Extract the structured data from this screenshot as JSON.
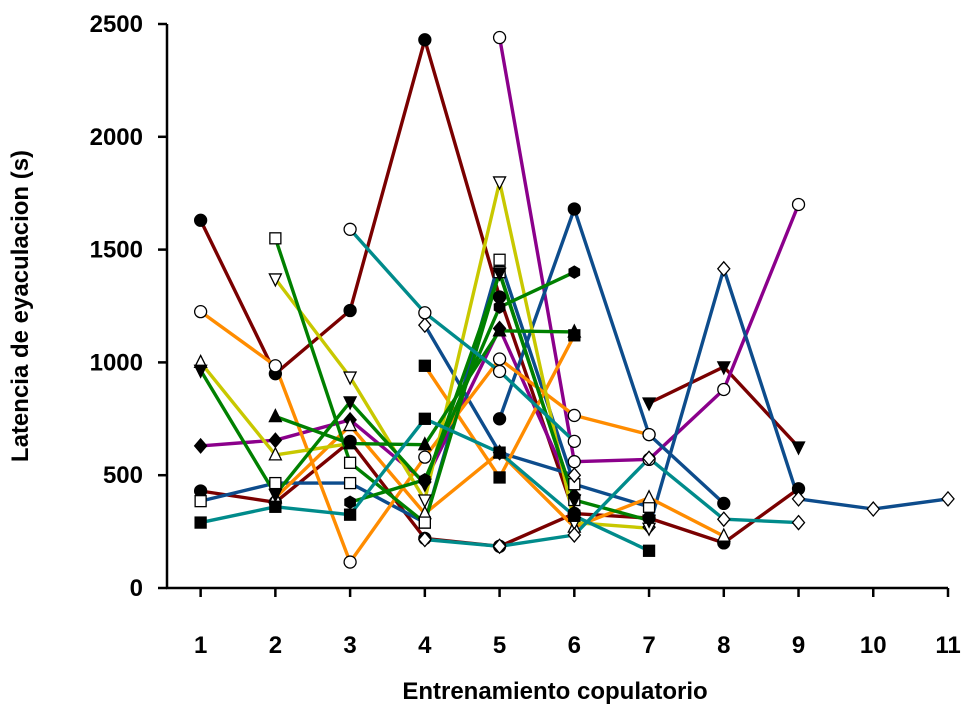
{
  "chart_data": {
    "type": "line",
    "title": "",
    "xlabel": "Entrenamiento copulatorio",
    "ylabel": "Latencia de eyaculacion (s)",
    "xlim": [
      0.55,
      11
    ],
    "ylim": [
      0,
      2500
    ],
    "x_ticks": [
      1,
      2,
      3,
      4,
      5,
      6,
      7,
      8,
      9,
      10,
      11
    ],
    "y_ticks": [
      0,
      500,
      1000,
      1500,
      2000,
      2500
    ],
    "grid": false,
    "legend": "none",
    "series": [
      {
        "color": "#7a0000",
        "marker": "circle-filled",
        "x": [
          1,
          2,
          3,
          4,
          5,
          6
        ],
        "y": [
          1630,
          950,
          1230,
          2430,
          1290,
          330
        ]
      },
      {
        "color": "#7a0000",
        "marker": "circle-filled",
        "x": [
          1,
          2,
          3,
          4,
          5,
          6,
          7,
          8,
          9
        ],
        "y": [
          430,
          380,
          650,
          220,
          185,
          330,
          310,
          200,
          440
        ]
      },
      {
        "color": "#7a0000",
        "marker": "triangle-down-filled",
        "x": [
          7,
          8,
          9
        ],
        "y": [
          820,
          980,
          625
        ]
      },
      {
        "color": "#8b008b",
        "marker": "circle-open",
        "x": [
          5,
          6,
          7,
          8,
          9
        ],
        "y": [
          2440,
          560,
          570,
          880,
          1700
        ]
      },
      {
        "color": "#8b008b",
        "marker": "diamond-filled",
        "x": [
          1,
          2,
          3,
          4,
          5,
          6
        ],
        "y": [
          630,
          655,
          745,
          470,
          1150,
          410
        ]
      },
      {
        "color": "#0d4c8c",
        "marker": "circle-filled",
        "x": [
          5,
          6,
          7,
          8
        ],
        "y": [
          750,
          1680,
          680,
          375
        ]
      },
      {
        "color": "#0d4c8c",
        "marker": "diamond-open",
        "x": [
          7,
          8,
          9,
          10,
          11
        ],
        "y": [
          270,
          1415,
          395,
          350,
          395
        ]
      },
      {
        "color": "#0d4c8c",
        "marker": "square-open",
        "x": [
          1,
          2,
          3,
          4,
          5,
          6,
          7
        ],
        "y": [
          385,
          465,
          465,
          290,
          1455,
          460,
          360
        ]
      },
      {
        "color": "#0d4c8c",
        "marker": "diamond-open",
        "x": [
          4,
          5,
          6
        ],
        "y": [
          1165,
          600,
          500
        ]
      },
      {
        "color": "#ff8c00",
        "marker": "circle-open",
        "x": [
          1,
          2,
          3,
          4,
          5,
          6,
          7
        ],
        "y": [
          1225,
          985,
          115,
          580,
          1015,
          765,
          680
        ]
      },
      {
        "color": "#ff8c00",
        "marker": "square-filled",
        "x": [
          4,
          5,
          6
        ],
        "y": [
          985,
          490,
          1120
        ]
      },
      {
        "color": "#ff8c00",
        "marker": "triangle-up-open",
        "x": [
          2,
          3,
          4,
          5,
          6,
          7,
          8
        ],
        "y": [
          400,
          720,
          330,
          600,
          270,
          400,
          230
        ]
      },
      {
        "color": "#c8c800",
        "marker": "triangle-down-open",
        "x": [
          2,
          3,
          4,
          5,
          6,
          7
        ],
        "y": [
          1370,
          935,
          390,
          1800,
          290,
          265
        ]
      },
      {
        "color": "#c8c800",
        "marker": "triangle-up-open",
        "x": [
          1,
          2,
          3
        ],
        "y": [
          1000,
          590,
          640
        ]
      },
      {
        "color": "#008000",
        "marker": "square-open",
        "x": [
          2,
          3,
          4,
          5,
          6
        ],
        "y": [
          1550,
          555,
          290,
          1400,
          390
        ]
      },
      {
        "color": "#008000",
        "marker": "triangle-down-filled",
        "x": [
          1,
          2,
          3,
          4,
          5,
          6,
          7
        ],
        "y": [
          965,
          415,
          825,
          460,
          1395,
          390,
          300
        ]
      },
      {
        "color": "#008000",
        "marker": "triangle-up-filled",
        "x": [
          2,
          3,
          4,
          5,
          6
        ],
        "y": [
          760,
          640,
          635,
          1140,
          1135
        ]
      },
      {
        "color": "#008000",
        "marker": "hexagon-filled",
        "x": [
          3,
          4,
          5,
          6
        ],
        "y": [
          380,
          480,
          1245,
          1400
        ]
      },
      {
        "color": "#008b8b",
        "marker": "square-filled",
        "x": [
          1,
          2,
          3,
          4,
          5,
          6,
          7
        ],
        "y": [
          290,
          360,
          325,
          750,
          600,
          320,
          165
        ]
      },
      {
        "color": "#008b8b",
        "marker": "circle-open",
        "x": [
          3,
          4,
          5,
          6
        ],
        "y": [
          1590,
          1220,
          960,
          650
        ]
      },
      {
        "color": "#008b8b",
        "marker": "diamond-open",
        "x": [
          4,
          5,
          6,
          7,
          8,
          9
        ],
        "y": [
          215,
          185,
          235,
          575,
          305,
          290
        ]
      }
    ]
  }
}
